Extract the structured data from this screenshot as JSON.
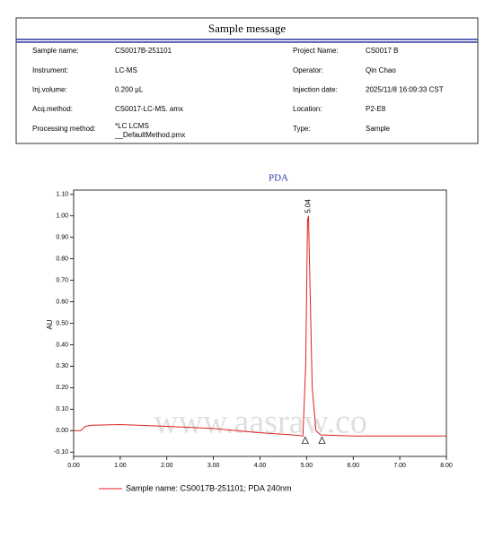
{
  "sample_message": {
    "title": "Sample message",
    "rows": [
      [
        "Sample name:",
        "CS0017B-251101",
        "Project Name:",
        "CS0017 B"
      ],
      [
        "Instrument:",
        "LC-MS",
        "Operator:",
        "Qin Chao"
      ],
      [
        "Inj.volume:",
        "0.200 µL",
        "Injection date:",
        "2025/11/8 16:09:33 CST"
      ],
      [
        "Acq.method:",
        "CS0017-LC-MS. amx",
        "Location:",
        "P2-E8"
      ],
      [
        "Processing method:",
        [
          "*LC LCMS",
          "__DefaultMethod.pmx"
        ],
        "Type:",
        "Sample"
      ]
    ]
  },
  "chart_data": {
    "type": "line",
    "title": "PDA",
    "y_label": "AU",
    "watermark": "www.aasraw.co",
    "xlim": [
      0,
      8
    ],
    "ylim": [
      -0.12,
      1.12
    ],
    "xticks": [
      {
        "value": 0,
        "label": "0.00"
      },
      {
        "value": 1,
        "label": "1.00"
      },
      {
        "value": 2,
        "label": "2.00"
      },
      {
        "value": 3,
        "label": "3.00"
      },
      {
        "value": 4,
        "label": "4.00"
      },
      {
        "value": 5,
        "label": "5.00"
      },
      {
        "value": 6,
        "label": "6.00"
      },
      {
        "value": 7,
        "label": "7.00"
      },
      {
        "value": 8,
        "label": "8.00"
      }
    ],
    "yticks": [
      {
        "value": -0.1,
        "label": "-0.10"
      },
      {
        "value": 0,
        "label": "0.00"
      },
      {
        "value": 0.1,
        "label": "0.10"
      },
      {
        "value": 0.2,
        "label": "0.20"
      },
      {
        "value": 0.3,
        "label": "0.30"
      },
      {
        "value": 0.4,
        "label": "0.40"
      },
      {
        "value": 0.5,
        "label": "0.50"
      },
      {
        "value": 0.6,
        "label": "0.60"
      },
      {
        "value": 0.7,
        "label": "0.70"
      },
      {
        "value": 0.8,
        "label": "0.80"
      },
      {
        "value": 0.9,
        "label": "0.90"
      },
      {
        "value": 1.0,
        "label": "1.00"
      },
      {
        "value": 1.1,
        "label": "1.10"
      }
    ],
    "series": [
      {
        "name": "Sample name: CS0017B-251101;  PDA 240nm",
        "color": "#e02020",
        "x": [
          0,
          0.15,
          0.25,
          0.4,
          1.0,
          2.0,
          3.0,
          4.0,
          4.7,
          4.92,
          4.98,
          5.02,
          5.04,
          5.07,
          5.12,
          5.2,
          5.3,
          6.0,
          7.0,
          8.0
        ],
        "values": [
          0,
          0,
          0.02,
          0.025,
          0.028,
          0.02,
          0.01,
          -0.01,
          -0.02,
          -0.025,
          0.3,
          0.98,
          1.0,
          0.7,
          0.2,
          0.0,
          -0.02,
          -0.025,
          -0.025,
          -0.025
        ]
      }
    ],
    "peak_label": {
      "x": 5.04,
      "y": 1.0,
      "label": "5.04"
    },
    "baseline_marks": {
      "x": [
        4.97,
        5.33
      ],
      "y": [
        -0.03,
        -0.03
      ]
    }
  }
}
